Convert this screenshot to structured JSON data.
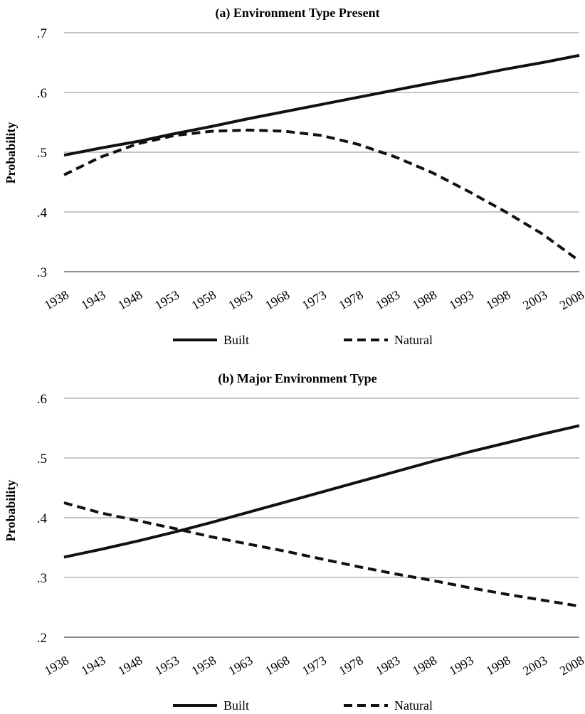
{
  "chart_data": [
    {
      "type": "line",
      "title": "(a) Environment Type Present",
      "ylabel": "Probability",
      "xlabel": "",
      "x": [
        1938,
        1943,
        1948,
        1953,
        1958,
        1963,
        1968,
        1973,
        1978,
        1983,
        1988,
        1993,
        1998,
        2003,
        2008
      ],
      "x_tick_labels": [
        "1938",
        "1943",
        "1948",
        "1953",
        "1958",
        "1963",
        "1968",
        "1973",
        "1978",
        "1983",
        "1988",
        "1993",
        "1998",
        "2003",
        "2008"
      ],
      "ylim": [
        0.3,
        0.7
      ],
      "y_ticks": [
        0.3,
        0.4,
        0.5,
        0.6,
        0.7
      ],
      "y_tick_labels": [
        ".3",
        ".4",
        ".5",
        ".6",
        ".7"
      ],
      "grid": true,
      "legend_position": "bottom",
      "series": [
        {
          "name": "Built",
          "style": "solid",
          "values": [
            0.495,
            0.507,
            0.518,
            0.531,
            0.543,
            0.556,
            0.568,
            0.58,
            0.592,
            0.604,
            0.616,
            0.627,
            0.639,
            0.65,
            0.662
          ]
        },
        {
          "name": "Natural",
          "style": "dashed",
          "values": [
            0.462,
            0.492,
            0.514,
            0.528,
            0.535,
            0.537,
            0.535,
            0.528,
            0.513,
            0.492,
            0.466,
            0.434,
            0.4,
            0.363,
            0.318
          ]
        }
      ]
    },
    {
      "type": "line",
      "title": "(b) Major Environment Type",
      "ylabel": "Probability",
      "xlabel": "",
      "x": [
        1938,
        1943,
        1948,
        1953,
        1958,
        1963,
        1968,
        1973,
        1978,
        1983,
        1988,
        1993,
        1998,
        2003,
        2008
      ],
      "x_tick_labels": [
        "1938",
        "1943",
        "1948",
        "1953",
        "1958",
        "1963",
        "1968",
        "1973",
        "1978",
        "1983",
        "1988",
        "1993",
        "1998",
        "2003",
        "2008"
      ],
      "ylim": [
        0.2,
        0.6
      ],
      "y_ticks": [
        0.2,
        0.3,
        0.4,
        0.5,
        0.6
      ],
      "y_tick_labels": [
        ".2",
        ".3",
        ".4",
        ".5",
        ".6"
      ],
      "grid": true,
      "legend_position": "bottom",
      "series": [
        {
          "name": "Built",
          "style": "solid",
          "values": [
            0.334,
            0.347,
            0.361,
            0.376,
            0.392,
            0.409,
            0.426,
            0.443,
            0.46,
            0.477,
            0.494,
            0.51,
            0.525,
            0.54,
            0.554
          ]
        },
        {
          "name": "Natural",
          "style": "dashed",
          "values": [
            0.425,
            0.408,
            0.395,
            0.382,
            0.368,
            0.356,
            0.344,
            0.331,
            0.318,
            0.306,
            0.295,
            0.283,
            0.272,
            0.262,
            0.252
          ]
        }
      ]
    }
  ]
}
